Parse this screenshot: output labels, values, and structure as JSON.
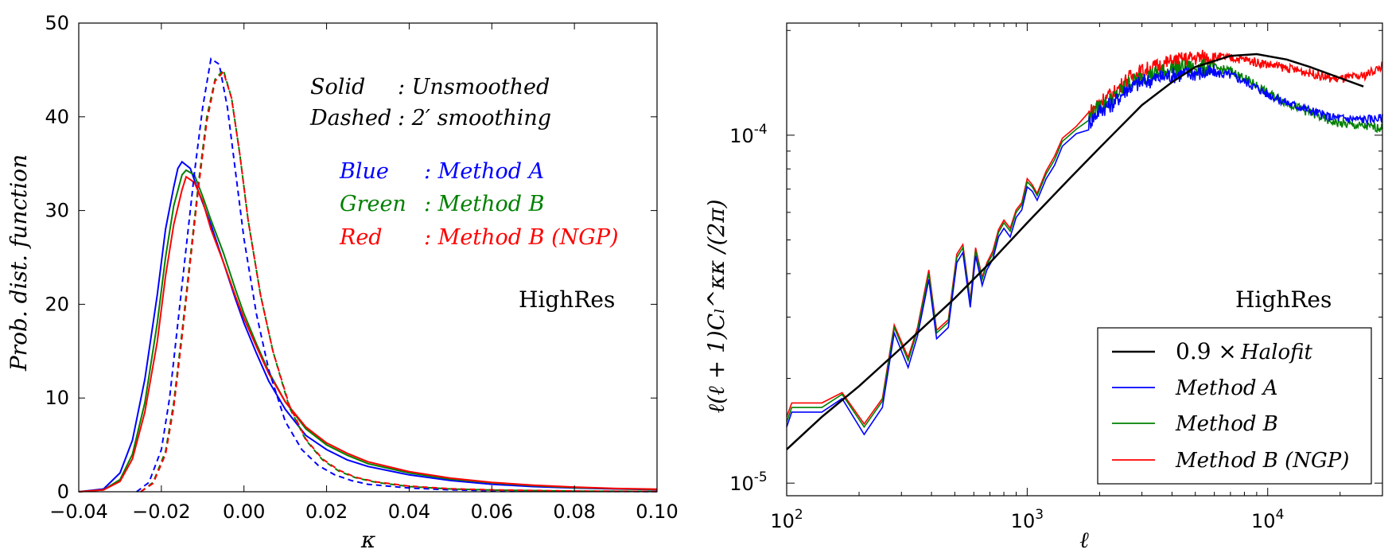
{
  "chart_data": [
    {
      "type": "line",
      "xlabel": "κ",
      "ylabel": "Prob. dist. function",
      "xlim": [
        -0.04,
        0.1
      ],
      "ylim": [
        0,
        50
      ],
      "xticks": [
        "−0.04",
        "−0.02",
        "0.00",
        "0.02",
        "0.04",
        "0.06",
        "0.08",
        "0.10"
      ],
      "yticks": [
        "0",
        "10",
        "20",
        "30",
        "40",
        "50"
      ],
      "annotation_lines": [
        {
          "key": "Solid",
          "value": ": Unsmoothed",
          "color": "#000000"
        },
        {
          "key": "Dashed",
          "value": ": 2′ smoothing",
          "color": "#000000"
        }
      ],
      "color_key": [
        {
          "key": "Blue",
          "value": ": Method A",
          "color": "#0000ff"
        },
        {
          "key": "Green",
          "value": ": Method B",
          "color": "#008000"
        },
        {
          "key": "Red",
          "value": ": Method B (NGP)",
          "color": "#ff0000"
        }
      ],
      "label": "HighRes",
      "series": [
        {
          "name": "Method A (unsmoothed)",
          "color": "#0000ff",
          "style": "solid",
          "x": [
            -0.04,
            -0.034,
            -0.03,
            -0.027,
            -0.024,
            -0.021,
            -0.019,
            -0.017,
            -0.016,
            -0.015,
            -0.013,
            -0.011,
            -0.008,
            -0.005,
            -0.002,
            0.0,
            0.003,
            0.006,
            0.01,
            0.015,
            0.02,
            0.025,
            0.03,
            0.04,
            0.05,
            0.06,
            0.07,
            0.08,
            0.09,
            0.1
          ],
          "y": [
            0,
            0.3,
            2,
            5.5,
            12,
            21,
            28,
            32.5,
            34.5,
            35.2,
            34.5,
            32,
            28.5,
            24.5,
            20.5,
            18,
            14.8,
            11.8,
            8.8,
            6,
            4.5,
            3.4,
            2.7,
            1.8,
            1.2,
            0.8,
            0.55,
            0.4,
            0.3,
            0.22
          ]
        },
        {
          "name": "Method B (unsmoothed)",
          "color": "#008000",
          "style": "solid",
          "x": [
            -0.04,
            -0.034,
            -0.03,
            -0.027,
            -0.024,
            -0.021,
            -0.019,
            -0.017,
            -0.015,
            -0.014,
            -0.012,
            -0.01,
            -0.008,
            -0.005,
            -0.002,
            0.0,
            0.003,
            0.006,
            0.01,
            0.015,
            0.02,
            0.025,
            0.03,
            0.04,
            0.05,
            0.06,
            0.07,
            0.08,
            0.09,
            0.1
          ],
          "y": [
            0,
            0.2,
            1.3,
            4,
            9.5,
            18,
            25,
            30.5,
            33.8,
            34.3,
            33.8,
            31.5,
            29,
            25.5,
            21.5,
            19,
            15.8,
            12.8,
            9.6,
            6.7,
            5,
            3.9,
            3,
            2,
            1.35,
            0.95,
            0.65,
            0.45,
            0.33,
            0.25
          ]
        },
        {
          "name": "Method B (NGP) (unsmoothed)",
          "color": "#ff0000",
          "style": "solid",
          "x": [
            -0.04,
            -0.034,
            -0.03,
            -0.027,
            -0.024,
            -0.021,
            -0.019,
            -0.017,
            -0.015,
            -0.014,
            -0.012,
            -0.01,
            -0.008,
            -0.005,
            -0.002,
            0.0,
            0.003,
            0.006,
            0.01,
            0.015,
            0.02,
            0.025,
            0.03,
            0.04,
            0.05,
            0.06,
            0.07,
            0.08,
            0.09,
            0.1
          ],
          "y": [
            0,
            0.2,
            1.1,
            3.5,
            8.5,
            16,
            23,
            28.5,
            32.2,
            33.6,
            33,
            31,
            28,
            24.5,
            20.8,
            18.5,
            15.5,
            12.6,
            9.6,
            6.9,
            5.2,
            4.1,
            3.2,
            2.15,
            1.45,
            1,
            0.7,
            0.5,
            0.35,
            0.27
          ]
        },
        {
          "name": "Method A (2′ smoothing)",
          "color": "#0000ff",
          "style": "dashed",
          "x": [
            -0.026,
            -0.023,
            -0.02,
            -0.018,
            -0.016,
            -0.014,
            -0.012,
            -0.01,
            -0.008,
            -0.006,
            -0.004,
            -0.002,
            0.0,
            0.003,
            0.006,
            0.01,
            0.014,
            0.018,
            0.022,
            0.026,
            0.03,
            0.04,
            0.05,
            0.06,
            0.08,
            0.1
          ],
          "y": [
            0,
            1,
            4.5,
            10,
            18,
            26,
            34,
            41,
            46.2,
            45.6,
            41,
            34,
            27,
            19,
            13,
            7.5,
            4.5,
            2.8,
            1.8,
            1.2,
            0.8,
            0.4,
            0.2,
            0.12,
            0.05,
            0.02
          ]
        },
        {
          "name": "Method B (2′ smoothing)",
          "color": "#008000",
          "style": "dashed",
          "x": [
            -0.025,
            -0.022,
            -0.019,
            -0.017,
            -0.015,
            -0.013,
            -0.011,
            -0.009,
            -0.007,
            -0.005,
            -0.003,
            -0.001,
            0.001,
            0.004,
            0.007,
            0.011,
            0.015,
            0.019,
            0.023,
            0.027,
            0.032,
            0.04,
            0.05,
            0.06,
            0.08,
            0.1
          ],
          "y": [
            0,
            1,
            4.3,
            9.5,
            17,
            25,
            33,
            40,
            44,
            45,
            42,
            36,
            29,
            21,
            15,
            9,
            5.5,
            3.4,
            2.2,
            1.5,
            1,
            0.55,
            0.3,
            0.18,
            0.07,
            0.03
          ]
        },
        {
          "name": "Method B (NGP) (2′ smoothing)",
          "color": "#ff0000",
          "style": "dashed",
          "x": [
            -0.025,
            -0.022,
            -0.019,
            -0.017,
            -0.015,
            -0.013,
            -0.011,
            -0.009,
            -0.007,
            -0.005,
            -0.003,
            -0.001,
            0.001,
            0.004,
            0.007,
            0.011,
            0.015,
            0.019,
            0.023,
            0.027,
            0.032,
            0.04,
            0.05,
            0.06,
            0.08,
            0.1
          ],
          "y": [
            0,
            0.9,
            4,
            9,
            16.5,
            24.5,
            32.5,
            39.5,
            43.8,
            44.8,
            42,
            36,
            29,
            21,
            15,
            9.2,
            5.6,
            3.5,
            2.3,
            1.55,
            1.05,
            0.6,
            0.32,
            0.2,
            0.08,
            0.03
          ]
        }
      ]
    },
    {
      "type": "line",
      "xscale": "log",
      "yscale": "log",
      "xlabel": "ℓ",
      "ylabel": "ℓ(ℓ + 1)Cₗ^κκ /(2π)",
      "xlim": [
        100,
        30000
      ],
      "ylim": [
        9.2e-06,
        0.00021
      ],
      "xticks": [
        {
          "base": "10",
          "exp": "2"
        },
        {
          "base": "10",
          "exp": "3"
        },
        {
          "base": "10",
          "exp": "4"
        }
      ],
      "yticks": [
        {
          "base": "10",
          "exp": "-5"
        },
        {
          "base": "10",
          "exp": "-4"
        }
      ],
      "label": "HighRes",
      "legend": [
        {
          "prefix": "0.9 ×",
          "label": "Halofit",
          "color": "#000000"
        },
        {
          "prefix": "",
          "label": "Method A",
          "color": "#0000ff"
        },
        {
          "prefix": "",
          "label": "Method B",
          "color": "#008000"
        },
        {
          "prefix": "",
          "label": "Method B (NGP)",
          "color": "#ff0000"
        }
      ],
      "series": [
        {
          "name": "0.9 × Halofit",
          "color": "#000000",
          "x": [
            100,
            140,
            200,
            300,
            500,
            700,
            1000,
            1500,
            2000,
            3000,
            4000,
            5000,
            7000,
            9000,
            12000,
            15000,
            20000,
            25000
          ],
          "y": [
            1.25e-05,
            1.55e-05,
            1.9e-05,
            2.45e-05,
            3.4e-05,
            4.3e-05,
            5.6e-05,
            7.5e-05,
            9.2e-05,
            0.000122,
            0.000142,
            0.000157,
            0.000169,
            0.000171,
            0.000165,
            0.000157,
            0.000146,
            0.000138
          ]
        },
        {
          "name": "Method A",
          "color": "#0000ff",
          "x": [
            100,
            105,
            140,
            170,
            210,
            250,
            280,
            320,
            350,
            390,
            420,
            470,
            510,
            540,
            580,
            610,
            650,
            680,
            720,
            760,
            800,
            850,
            900,
            950,
            1000,
            1050,
            1100,
            1200,
            1300,
            1400,
            1500,
            1600,
            1800,
            2000,
            2300,
            2600,
            3000,
            3500,
            4000,
            5000,
            6000,
            7000,
            8000,
            9000,
            10000,
            12000,
            15000,
            18000,
            20000,
            25000,
            30000
          ],
          "y": [
            1.45e-05,
            1.6e-05,
            1.6e-05,
            1.75e-05,
            1.38e-05,
            1.65e-05,
            2.7e-05,
            2.15e-05,
            2.65e-05,
            3.85e-05,
            2.6e-05,
            2.8e-05,
            4.3e-05,
            4.6e-05,
            3.2e-05,
            4.5e-05,
            3.7e-05,
            4.1e-05,
            4.4e-05,
            5.1e-05,
            5.4e-05,
            5.1e-05,
            5.8e-05,
            6.1e-05,
            7.1e-05,
            6.9e-05,
            6.5e-05,
            7.5e-05,
            8.2e-05,
            9.3e-05,
            9.7e-05,
            0.000101,
            0.000108,
            0.000118,
            0.000124,
            0.000136,
            0.000142,
            0.000146,
            0.000149,
            0.000151,
            0.000151,
            0.000149,
            0.000143,
            0.000137,
            0.000131,
            0.000124,
            0.000118,
            0.000113,
            0.000112,
            0.000111,
            0.000112
          ]
        },
        {
          "name": "Method B",
          "color": "#008000",
          "x": [
            100,
            105,
            140,
            170,
            210,
            250,
            280,
            320,
            350,
            390,
            420,
            470,
            510,
            540,
            580,
            610,
            650,
            680,
            720,
            760,
            800,
            850,
            900,
            950,
            1000,
            1050,
            1100,
            1200,
            1300,
            1400,
            1500,
            1600,
            1800,
            2000,
            2300,
            2600,
            3000,
            3500,
            4000,
            5000,
            6000,
            7000,
            8000,
            9000,
            10000,
            12000,
            15000,
            18000,
            20000,
            25000,
            30000
          ],
          "y": [
            1.5e-05,
            1.65e-05,
            1.65e-05,
            1.8e-05,
            1.45e-05,
            1.72e-05,
            2.8e-05,
            2.25e-05,
            2.75e-05,
            4e-05,
            2.7e-05,
            2.9e-05,
            4.45e-05,
            4.75e-05,
            3.3e-05,
            4.65e-05,
            3.85e-05,
            4.25e-05,
            4.55e-05,
            5.25e-05,
            5.6e-05,
            5.3e-05,
            6e-05,
            6.3e-05,
            7.35e-05,
            7.1e-05,
            6.7e-05,
            7.75e-05,
            8.5e-05,
            9.6e-05,
            0.0001,
            0.000104,
            0.000112,
            0.000121,
            0.000128,
            0.00014,
            0.000147,
            0.000151,
            0.000155,
            0.000157,
            0.000156,
            0.000153,
            0.000146,
            0.000139,
            0.000132,
            0.000124,
            0.000116,
            0.00011,
            0.000108,
            0.000106,
            0.000105
          ]
        },
        {
          "name": "Method B (NGP)",
          "color": "#ff0000",
          "x": [
            100,
            105,
            140,
            170,
            210,
            250,
            280,
            320,
            350,
            390,
            420,
            470,
            510,
            540,
            580,
            610,
            650,
            680,
            720,
            760,
            800,
            850,
            900,
            950,
            1000,
            1050,
            1100,
            1200,
            1300,
            1400,
            1500,
            1600,
            1800,
            2000,
            2300,
            2600,
            3000,
            3500,
            4000,
            5000,
            6000,
            7000,
            8000,
            9000,
            10000,
            12000,
            15000,
            18000,
            20000,
            25000,
            30000
          ],
          "y": [
            1.55e-05,
            1.7e-05,
            1.7e-05,
            1.82e-05,
            1.48e-05,
            1.75e-05,
            2.85e-05,
            2.3e-05,
            2.8e-05,
            4.1e-05,
            2.75e-05,
            2.95e-05,
            4.55e-05,
            4.85e-05,
            3.35e-05,
            4.75e-05,
            3.9e-05,
            4.3e-05,
            4.65e-05,
            5.35e-05,
            5.7e-05,
            5.4e-05,
            6.1e-05,
            6.4e-05,
            7.5e-05,
            7.2e-05,
            6.8e-05,
            7.9e-05,
            8.7e-05,
            9.8e-05,
            0.000102,
            0.000106,
            0.000115,
            0.000125,
            0.000132,
            0.000145,
            0.000153,
            0.000158,
            0.000163,
            0.000167,
            0.000168,
            0.000167,
            0.000165,
            0.000162,
            0.00016,
            0.000156,
            0.000151,
            0.000146,
            0.000145,
            0.000148,
            0.000158
          ]
        }
      ]
    }
  ]
}
